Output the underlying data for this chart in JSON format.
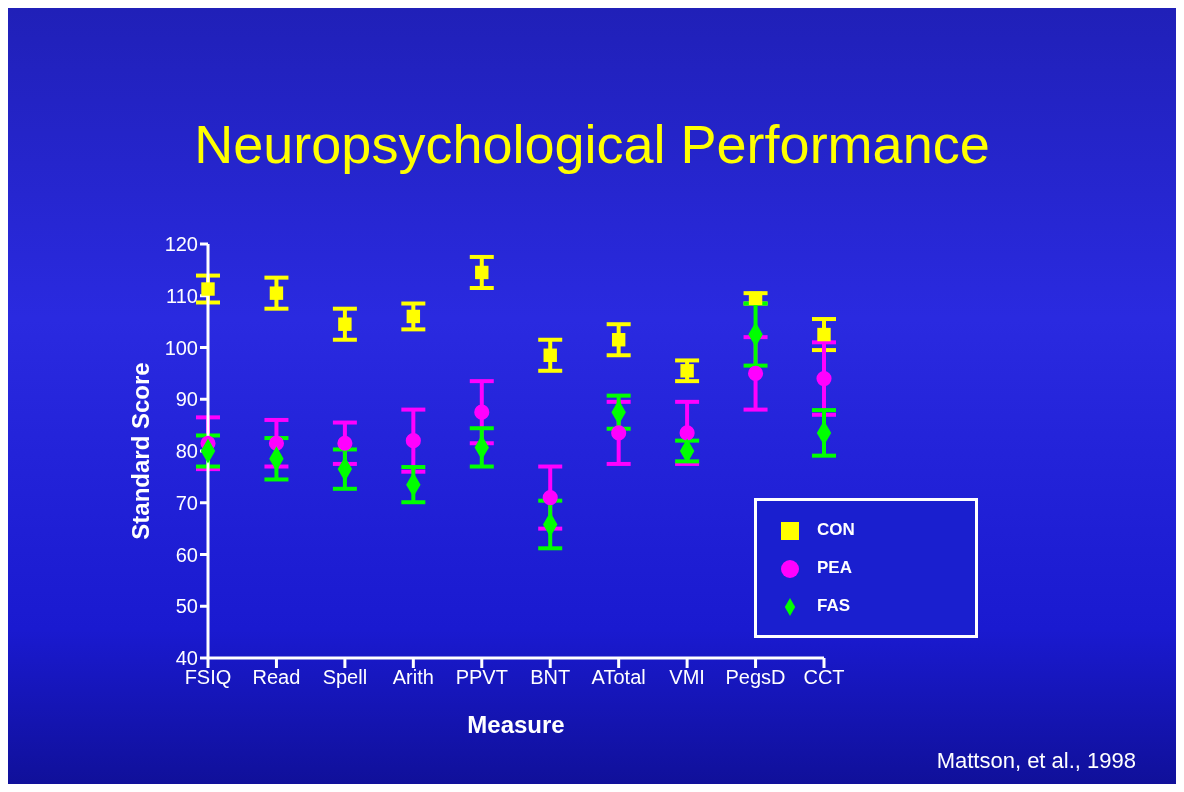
{
  "chart_data": {
    "type": "scatter",
    "title": "Neuropsychological Performance",
    "xlabel": "Measure",
    "ylabel": "Standard Score",
    "categories": [
      "FSIQ",
      "Read",
      "Spell",
      "Arith",
      "PPVT",
      "BNT",
      "ATotal",
      "VMI",
      "PegsD",
      "CCT"
    ],
    "series": [
      {
        "name": "CON",
        "color": "#ffff00",
        "marker": "square",
        "values": [
          111.3,
          110.5,
          104.5,
          106,
          114.5,
          98.5,
          101.5,
          95.5,
          109.5,
          102.5
        ],
        "errors": [
          2.6,
          3,
          3,
          2.5,
          3,
          3,
          3,
          2,
          1,
          3
        ]
      },
      {
        "name": "PEA",
        "color": "#ff00ff",
        "marker": "circle",
        "values": [
          81.5,
          81.5,
          81.5,
          82,
          87.5,
          71,
          83.5,
          83.5,
          95,
          94
        ],
        "errors": [
          5,
          4.5,
          4,
          6,
          6,
          6,
          6,
          6,
          7,
          7
        ]
      },
      {
        "name": "FAS",
        "color": "#00ff00",
        "marker": "diamond",
        "values": [
          80,
          78.5,
          76.5,
          73.5,
          80.7,
          65.8,
          87.5,
          80,
          102.5,
          83.5
        ],
        "errors": [
          3,
          4,
          3.8,
          3.4,
          3.7,
          4.6,
          3.2,
          2,
          6,
          4.4
        ]
      }
    ],
    "ylim": [
      40,
      120
    ],
    "yticks": [
      40,
      50,
      60,
      70,
      80,
      90,
      100,
      110,
      120
    ],
    "grid": false,
    "legend": "bottom right",
    "annotations": [
      "Mattson, et al., 1998"
    ]
  }
}
